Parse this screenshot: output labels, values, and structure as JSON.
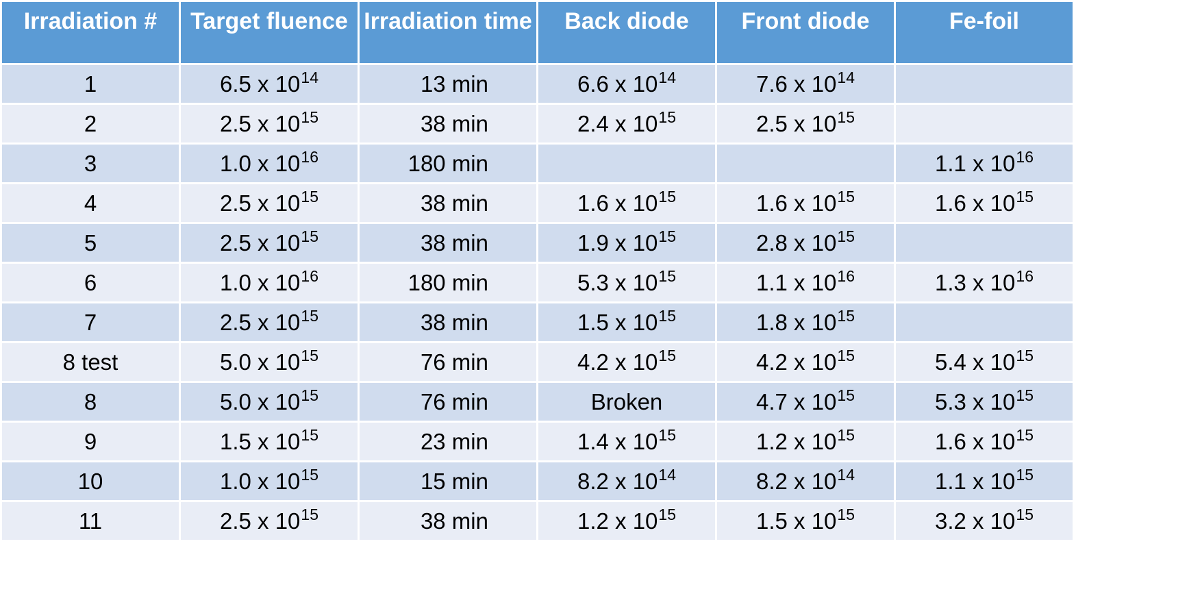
{
  "table": {
    "headers": [
      "Irradiation #",
      "Target fluence",
      "Irradiation time",
      "Back diode",
      "Front diode",
      "Fe-foil"
    ],
    "rows": [
      {
        "id": "1",
        "target": {
          "m": "6.5",
          "e": "14"
        },
        "time": "13 min",
        "back": {
          "m": "6.6",
          "e": "14"
        },
        "front": {
          "m": "7.6",
          "e": "14"
        },
        "fe": null
      },
      {
        "id": "2",
        "target": {
          "m": "2.5",
          "e": "15"
        },
        "time": "38 min",
        "back": {
          "m": "2.4",
          "e": "15"
        },
        "front": {
          "m": "2.5",
          "e": "15"
        },
        "fe": null
      },
      {
        "id": "3",
        "target": {
          "m": "1.0",
          "e": "16"
        },
        "time": "180 min",
        "back": null,
        "front": null,
        "fe": {
          "m": "1.1",
          "e": "16"
        }
      },
      {
        "id": "4",
        "target": {
          "m": "2.5",
          "e": "15"
        },
        "time": "38 min",
        "back": {
          "m": "1.6",
          "e": "15"
        },
        "front": {
          "m": "1.6",
          "e": "15"
        },
        "fe": {
          "m": "1.6",
          "e": "15"
        }
      },
      {
        "id": "5",
        "target": {
          "m": "2.5",
          "e": "15"
        },
        "time": "38 min",
        "back": {
          "m": "1.9",
          "e": "15"
        },
        "front": {
          "m": "2.8",
          "e": "15"
        },
        "fe": null
      },
      {
        "id": "6",
        "target": {
          "m": "1.0",
          "e": "16"
        },
        "time": "180 min",
        "back": {
          "m": "5.3",
          "e": "15"
        },
        "front": {
          "m": "1.1",
          "e": "16"
        },
        "fe": {
          "m": "1.3",
          "e": "16"
        }
      },
      {
        "id": "7",
        "target": {
          "m": "2.5",
          "e": "15"
        },
        "time": "38 min",
        "back": {
          "m": "1.5",
          "e": "15"
        },
        "front": {
          "m": "1.8",
          "e": "15"
        },
        "fe": null
      },
      {
        "id": "8 test",
        "target": {
          "m": "5.0",
          "e": "15"
        },
        "time": "76 min",
        "back": {
          "m": "4.2",
          "e": "15"
        },
        "front": {
          "m": "4.2",
          "e": "15"
        },
        "fe": {
          "m": "5.4",
          "e": "15"
        }
      },
      {
        "id": "8",
        "target": {
          "m": "5.0",
          "e": "15"
        },
        "time": "76 min",
        "back": "Broken",
        "front": {
          "m": "4.7",
          "e": "15"
        },
        "fe": {
          "m": "5.3",
          "e": "15"
        }
      },
      {
        "id": "9",
        "target": {
          "m": "1.5",
          "e": "15"
        },
        "time": "23 min",
        "back": {
          "m": "1.4",
          "e": "15"
        },
        "front": {
          "m": "1.2",
          "e": "15"
        },
        "fe": {
          "m": "1.6",
          "e": "15"
        }
      },
      {
        "id": "10",
        "target": {
          "m": "1.0",
          "e": "15"
        },
        "time": "15 min",
        "back": {
          "m": "8.2",
          "e": "14"
        },
        "front": {
          "m": "8.2",
          "e": "14"
        },
        "fe": {
          "m": "1.1",
          "e": "15"
        }
      },
      {
        "id": "11",
        "target": {
          "m": "2.5",
          "e": "15"
        },
        "time": "38 min",
        "back": {
          "m": "1.2",
          "e": "15"
        },
        "front": {
          "m": "1.5",
          "e": "15"
        },
        "fe": {
          "m": "3.2",
          "e": "15"
        }
      }
    ]
  },
  "style": {
    "header_bg": "#5b9bd5",
    "row_odd_bg": "#d0dcee",
    "row_even_bg": "#e9edf6"
  }
}
